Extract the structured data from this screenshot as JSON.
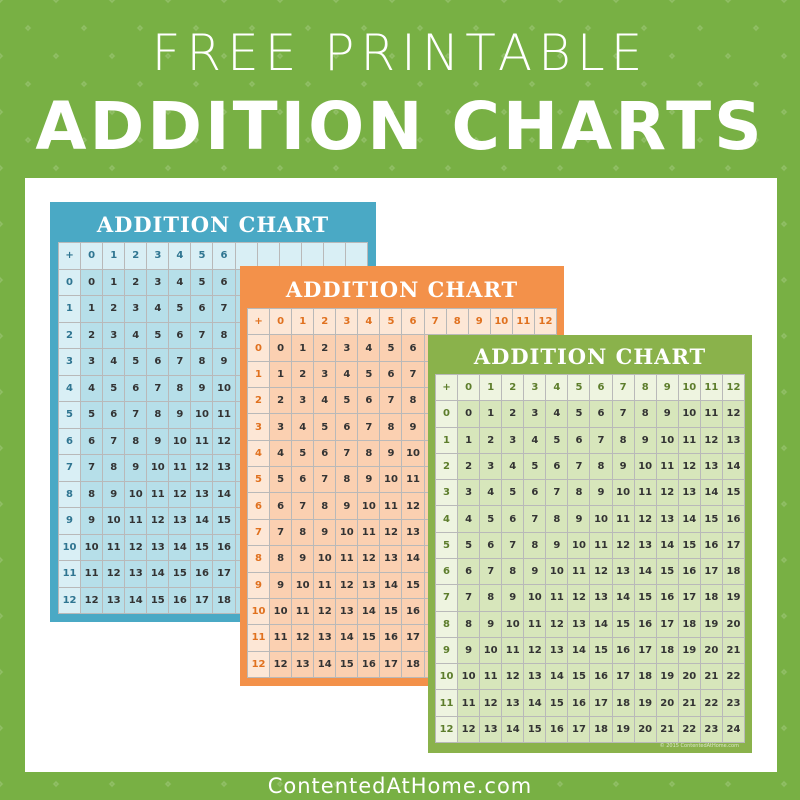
{
  "heading": {
    "line1": "FREE PRINTABLE",
    "line2": "ADDITION CHARTS"
  },
  "footer": "ContentedAtHome.com",
  "operator": "+",
  "operands": [
    "0",
    "1",
    "2",
    "3",
    "4",
    "5",
    "6",
    "7",
    "8",
    "9",
    "10",
    "11",
    "12"
  ],
  "sum_table": [
    [
      "0",
      "1",
      "2",
      "3",
      "4",
      "5",
      "6",
      "7",
      "8",
      "9",
      "10",
      "11",
      "12"
    ],
    [
      "1",
      "2",
      "3",
      "4",
      "5",
      "6",
      "7",
      "8",
      "9",
      "10",
      "11",
      "12",
      "13"
    ],
    [
      "2",
      "3",
      "4",
      "5",
      "6",
      "7",
      "8",
      "9",
      "10",
      "11",
      "12",
      "13",
      "14"
    ],
    [
      "3",
      "4",
      "5",
      "6",
      "7",
      "8",
      "9",
      "10",
      "11",
      "12",
      "13",
      "14",
      "15"
    ],
    [
      "4",
      "5",
      "6",
      "7",
      "8",
      "9",
      "10",
      "11",
      "12",
      "13",
      "14",
      "15",
      "16"
    ],
    [
      "5",
      "6",
      "7",
      "8",
      "9",
      "10",
      "11",
      "12",
      "13",
      "14",
      "15",
      "16",
      "17"
    ],
    [
      "6",
      "7",
      "8",
      "9",
      "10",
      "11",
      "12",
      "13",
      "14",
      "15",
      "16",
      "17",
      "18"
    ],
    [
      "7",
      "8",
      "9",
      "10",
      "11",
      "12",
      "13",
      "14",
      "15",
      "16",
      "17",
      "18",
      "19"
    ],
    [
      "8",
      "9",
      "10",
      "11",
      "12",
      "13",
      "14",
      "15",
      "16",
      "17",
      "18",
      "19",
      "20"
    ],
    [
      "9",
      "10",
      "11",
      "12",
      "13",
      "14",
      "15",
      "16",
      "17",
      "18",
      "19",
      "20",
      "21"
    ],
    [
      "10",
      "11",
      "12",
      "13",
      "14",
      "15",
      "16",
      "17",
      "18",
      "19",
      "20",
      "21",
      "22"
    ],
    [
      "11",
      "12",
      "13",
      "14",
      "15",
      "16",
      "17",
      "18",
      "19",
      "20",
      "21",
      "22",
      "23"
    ],
    [
      "12",
      "13",
      "14",
      "15",
      "16",
      "17",
      "18",
      "19",
      "20",
      "21",
      "22",
      "23",
      "24"
    ]
  ],
  "charts": [
    {
      "title": "ADDITION CHART",
      "frame": "#4aa9c5",
      "header_bg": "#d9eff5",
      "body_bg": "#b6dfe9",
      "label_color": "#2f7591"
    },
    {
      "title": "ADDITION CHART",
      "frame": "#f3914a",
      "header_bg": "#fde7d6",
      "body_bg": "#fbd0b1",
      "label_color": "#e0711f"
    },
    {
      "title": "ADDITION CHART",
      "frame": "#8ab24b",
      "header_bg": "#eef4e0",
      "body_bg": "#d7e6bb",
      "label_color": "#5d7d2c",
      "copyright": "© 2015 ContentedAtHome.com"
    }
  ]
}
